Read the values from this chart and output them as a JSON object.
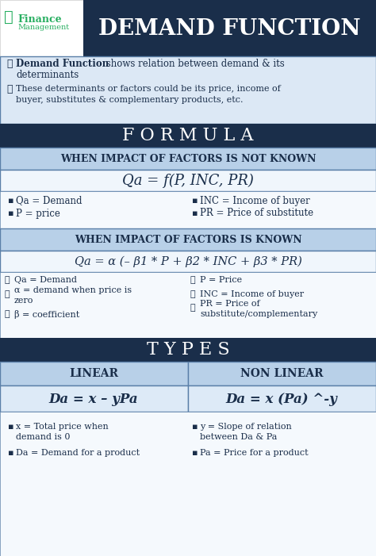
{
  "title": "DEMAND FUNCTION",
  "header_bg": "#1a2e4a",
  "light_blue_bg": "#dce8f5",
  "medium_blue_bg": "#b8d0e8",
  "dark_navy": "#1a2e4a",
  "formula_title": "F O R M U L A",
  "section1_title": "WHEN IMPACT OF FACTORS IS NOT KNOWN",
  "formula1": "Qa = f(P, INC, PR)",
  "def1_left1": "Qa = Demand",
  "def1_left2": "P = price",
  "def1_right1": "INC = Income of buyer",
  "def1_right2": "PR = Price of substitute",
  "section2_title": "WHEN IMPACT OF FACTORS IS KNOWN",
  "formula2": "Qa = α (– β1 * P + β2 * INC + β3 * PR)",
  "def2_left1": "Qa = Demand",
  "def2_left2": "α = demand when price is",
  "def2_left2b": "zero",
  "def2_left3": "β = coefficient",
  "def2_right1": "P = Price",
  "def2_right2": "INC = Income of buyer",
  "def2_right3": "PR = Price of",
  "def2_right3b": "substitute/complementary",
  "types_title": "T Y P E S",
  "linear_title": "LINEAR",
  "nonlinear_title": "NON LINEAR",
  "linear_formula": "Da = x – yPa",
  "nonlinear_formula": "Da = x (Pa) ^-y",
  "bottom_left1a": "x = Total price when",
  "bottom_left1b": "demand is 0",
  "bottom_left2": "Da = Demand for a product",
  "bottom_right1a": "y = Slope of relation",
  "bottom_right1b": "between Da & Pa",
  "bottom_right2": "Pa = Price for a product",
  "text_dark": "#1a2e4a",
  "green_color": "#27ae60",
  "border_color": "#5a7fa8"
}
